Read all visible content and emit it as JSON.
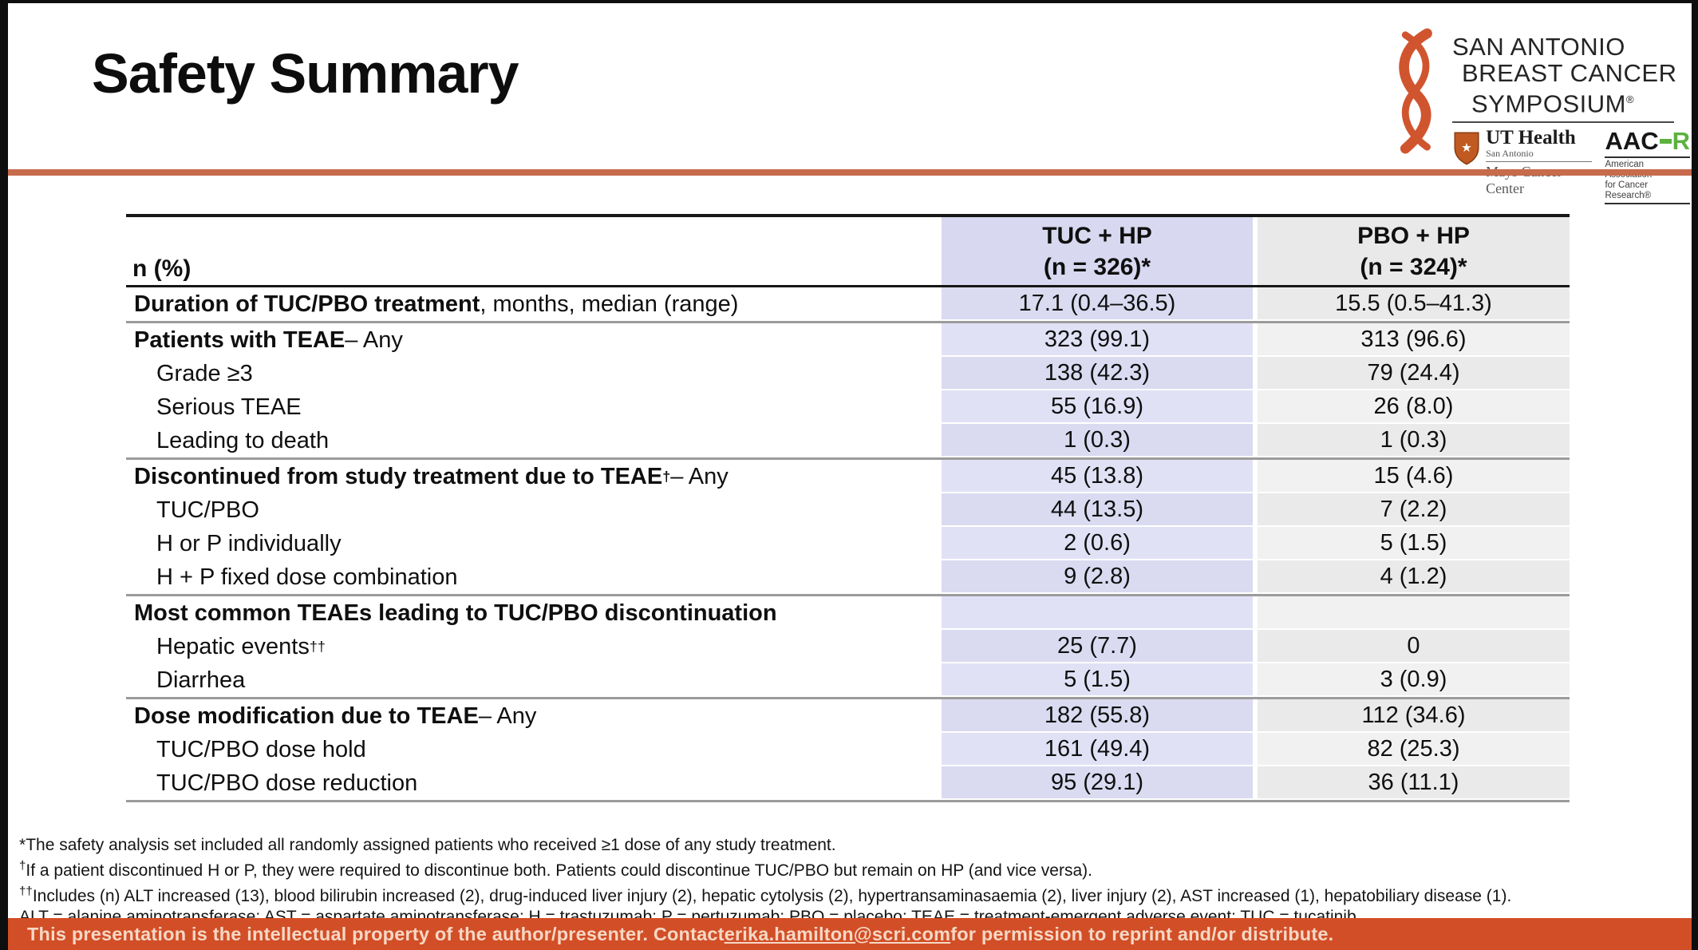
{
  "slide": {
    "title": "Safety Summary",
    "colors": {
      "accent_rule": "#c76b4d",
      "banner_bg": "#d24e27",
      "banner_text": "#f6d8c5",
      "tuc_header_bg": "#d8d8f0",
      "tuc_col_bg": "#dadaf1",
      "tuc_col_bg_alt": "#e1e1f6",
      "pbo_header_bg": "#e9e9e9",
      "pbo_col_bg": "#eaeaea",
      "pbo_col_bg_alt": "#f1f1f1",
      "section_line": "#9b9b9b",
      "ribbon_orange": "#d0552f",
      "aacr_green": "#5cb23c"
    },
    "logo": {
      "line1": "SAN ANTONIO",
      "line2": "BREAST CANCER",
      "line3": "SYMPOSIUM",
      "registered_mark": "®",
      "ut_health": "UT Health",
      "ut_sub": "San Antonio",
      "ut_center": "Mays Cancer Center",
      "aacr_black": "AAC",
      "aacr_green_letter": "R",
      "aacr_sub1": "American Association",
      "aacr_sub2": "for Cancer Research®"
    },
    "table": {
      "col1_header": "n (%)",
      "columns": [
        {
          "line1": "TUC + HP",
          "line2": "(n = 326)*"
        },
        {
          "line1": "PBO + HP",
          "line2": "(n = 324)*"
        }
      ],
      "rows": [
        {
          "parts": [
            {
              "t": "Duration of TUC/PBO treatment",
              "b": true
            },
            {
              "t": ", months, median (range)"
            }
          ],
          "indent": false,
          "tuc": "17.1 (0.4–36.5)",
          "pbo": "15.5 (0.5–41.3)",
          "divider": true
        },
        {
          "parts": [
            {
              "t": "Patients with TEAE",
              "b": true
            },
            {
              "t": " – Any"
            }
          ],
          "indent": false,
          "tuc": "323 (99.1)",
          "pbo": "313 (96.6)",
          "divider": false
        },
        {
          "parts": [
            {
              "t": "Grade ≥3"
            }
          ],
          "indent": true,
          "tuc": "138 (42.3)",
          "pbo": "79 (24.4)",
          "divider": false
        },
        {
          "parts": [
            {
              "t": "Serious TEAE"
            }
          ],
          "indent": true,
          "tuc": "55 (16.9)",
          "pbo": "26 (8.0)",
          "divider": false
        },
        {
          "parts": [
            {
              "t": "Leading to death"
            }
          ],
          "indent": true,
          "tuc": "1 (0.3)",
          "pbo": "1 (0.3)",
          "divider": true
        },
        {
          "parts": [
            {
              "t": "Discontinued from study treatment due to TEAE",
              "b": true
            },
            {
              "t": "†",
              "b": true,
              "sup": true
            },
            {
              "t": " – Any"
            }
          ],
          "indent": false,
          "tuc": "45 (13.8)",
          "pbo": "15 (4.6)",
          "divider": false
        },
        {
          "parts": [
            {
              "t": "TUC/PBO"
            }
          ],
          "indent": true,
          "tuc": "44 (13.5)",
          "pbo": "7 (2.2)",
          "divider": false
        },
        {
          "parts": [
            {
              "t": "H or P individually"
            }
          ],
          "indent": true,
          "tuc": "2 (0.6)",
          "pbo": "5 (1.5)",
          "divider": false
        },
        {
          "parts": [
            {
              "t": "H + P fixed dose combination"
            }
          ],
          "indent": true,
          "tuc": "9 (2.8)",
          "pbo": "4 (1.2)",
          "divider": true
        },
        {
          "parts": [
            {
              "t": "Most common TEAEs leading to TUC/PBO discontinuation",
              "b": true
            }
          ],
          "indent": false,
          "tuc": "",
          "pbo": "",
          "divider": false
        },
        {
          "parts": [
            {
              "t": "Hepatic events"
            },
            {
              "t": "††",
              "sup": true
            }
          ],
          "indent": true,
          "tuc": "25 (7.7)",
          "pbo": "0",
          "divider": false
        },
        {
          "parts": [
            {
              "t": "Diarrhea"
            }
          ],
          "indent": true,
          "tuc": "5 (1.5)",
          "pbo": "3 (0.9)",
          "divider": true
        },
        {
          "parts": [
            {
              "t": "Dose modification due to TEAE",
              "b": true
            },
            {
              "t": " – Any"
            }
          ],
          "indent": false,
          "tuc": "182 (55.8)",
          "pbo": "112 (34.6)",
          "divider": false
        },
        {
          "parts": [
            {
              "t": "TUC/PBO dose hold"
            }
          ],
          "indent": true,
          "tuc": "161 (49.4)",
          "pbo": "82 (25.3)",
          "divider": false
        },
        {
          "parts": [
            {
              "t": "TUC/PBO dose reduction"
            }
          ],
          "indent": true,
          "tuc": "95 (29.1)",
          "pbo": "36 (11.1)",
          "divider": true
        }
      ]
    },
    "footnotes": [
      {
        "marker": "*",
        "text": "The safety analysis set included all randomly assigned patients who received ≥1 dose of any study treatment."
      },
      {
        "marker": "†",
        "text": "If a patient discontinued H or P, they were required to discontinue both. Patients could discontinue TUC/PBO but remain on HP (and vice versa)."
      },
      {
        "marker": "††",
        "text": "Includes (n) ALT increased (13), blood bilirubin increased (2), drug-induced liver injury (2), hepatic cytolysis (2), hypertransaminasaemia (2), liver injury (2), AST increased (1), hepatobiliary disease (1)."
      },
      {
        "marker": "",
        "text": "ALT = alanine aminotransferase; AST = aspartate aminotransferase; H = trastuzumab; P = pertuzumab; PBO = placebo; TEAE = treatment-emergent adverse event; TUC = tucatinib."
      }
    ],
    "banner": {
      "text_before": "This presentation is the intellectual property of the author/presenter. Contact ",
      "email": "erika.hamilton@scri.com",
      "text_after": " for permission to reprint and/or distribute."
    }
  }
}
